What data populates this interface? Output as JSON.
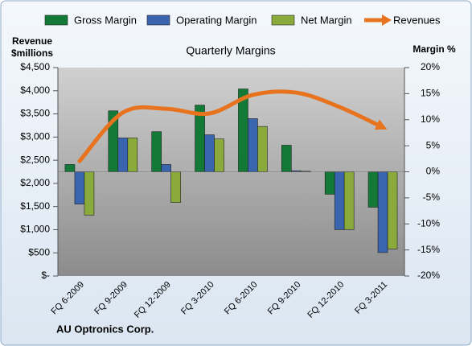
{
  "chart_data": {
    "type": "bar-line",
    "title": "Quarterly Margins",
    "ylabel_lines": [
      "Revenue",
      "$millions"
    ],
    "y2label": "Margin %",
    "source": "AU Optronics Corp.",
    "categories": [
      "FQ 6-2009",
      "FQ 9-2009",
      "FQ 12-2009",
      "FQ 3-2010",
      "FQ 6-2010",
      "FQ 9-2010",
      "FQ 12-2010",
      "FQ 3-2011"
    ],
    "series": [
      {
        "name": "Gross Margin",
        "color": "#127a36",
        "axis": "y2",
        "kind": "bar",
        "values": [
          1.4,
          11.7,
          7.7,
          12.8,
          15.9,
          5.1,
          -4.3,
          -6.8
        ]
      },
      {
        "name": "Operating Margin",
        "color": "#3a64ad",
        "axis": "y2",
        "kind": "bar",
        "values": [
          -6.2,
          6.5,
          1.4,
          7.1,
          10.2,
          0.2,
          -11.1,
          -15.5
        ]
      },
      {
        "name": "Net Margin",
        "color": "#8aab3c",
        "axis": "y2",
        "kind": "bar",
        "values": [
          -8.3,
          6.5,
          -5.9,
          6.3,
          8.7,
          0.1,
          -11.1,
          -14.8
        ]
      },
      {
        "name": "Revenues",
        "color": "#e8731e",
        "axis": "y",
        "kind": "line",
        "values": [
          2480,
          3530,
          3610,
          3510,
          3910,
          3960,
          3650,
          3210
        ]
      }
    ],
    "ylim": [
      0,
      4500
    ],
    "yticks": [
      {
        "value": 0,
        "label": "$-"
      },
      {
        "value": 500,
        "label": "$500"
      },
      {
        "value": 1000,
        "label": "$1,000"
      },
      {
        "value": 1500,
        "label": "$1,500"
      },
      {
        "value": 2000,
        "label": "$2,000"
      },
      {
        "value": 2500,
        "label": "$2,500"
      },
      {
        "value": 3000,
        "label": "$3,000"
      },
      {
        "value": 3500,
        "label": "$3,500"
      },
      {
        "value": 4000,
        "label": "$4,000"
      },
      {
        "value": 4500,
        "label": "$4,500"
      }
    ],
    "y2lim": [
      -20,
      20
    ],
    "y2ticks": [
      {
        "value": -20,
        "label": "-20%"
      },
      {
        "value": -15,
        "label": "-15%"
      },
      {
        "value": -10,
        "label": "-10%"
      },
      {
        "value": -5,
        "label": "-5%"
      },
      {
        "value": 0,
        "label": "0%"
      },
      {
        "value": 5,
        "label": "5%"
      },
      {
        "value": 10,
        "label": "10%"
      },
      {
        "value": 15,
        "label": "15%"
      },
      {
        "value": 20,
        "label": "20%"
      }
    ]
  }
}
